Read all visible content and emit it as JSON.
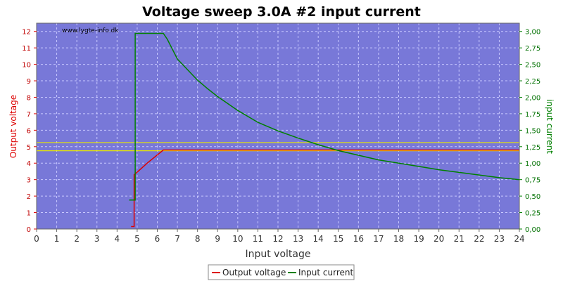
{
  "chart_data": {
    "type": "line",
    "title": "Voltage sweep 3.0A #2 input current",
    "xlabel": "Input voltage",
    "ylabel_left": "Output voltage",
    "ylabel_right": "input current",
    "watermark": "www.lygte-info.dk",
    "xlim": [
      0,
      24
    ],
    "ylim_left": [
      0,
      12.5
    ],
    "ylim_right": [
      0,
      3.125
    ],
    "x_ticks": [
      "0",
      "1",
      "2",
      "3",
      "4",
      "5",
      "6",
      "7",
      "8",
      "9",
      "10",
      "11",
      "12",
      "13",
      "14",
      "15",
      "16",
      "17",
      "18",
      "19",
      "20",
      "21",
      "22",
      "23",
      "24"
    ],
    "y_left_ticks": [
      "0",
      "1",
      "2",
      "3",
      "4",
      "5",
      "6",
      "7",
      "8",
      "9",
      "10",
      "11",
      "12"
    ],
    "y_right_ticks": [
      "0,00",
      "0,25",
      "0,50",
      "0,75",
      "1,00",
      "1,25",
      "1,50",
      "1,75",
      "2,00",
      "2,25",
      "2,50",
      "2,75",
      "3,00"
    ],
    "grid": true,
    "colors": {
      "plot_bg": "#7878d8",
      "grid": "#c8c8ff",
      "output_voltage": "#dd0000",
      "input_current": "#008000",
      "limit_lines": "#e8e800",
      "left_axis": "#dd0000",
      "right_axis": "#008000"
    },
    "reference_lines_left_axis": [
      4.75,
      5.25
    ],
    "series": [
      {
        "name": "Output voltage",
        "axis": "left",
        "x": [
          4.7,
          4.8,
          4.8,
          4.85,
          4.85,
          4.9,
          5.5,
          6.3,
          24.0
        ],
        "y": [
          0.15,
          0.15,
          0.15,
          0.15,
          3.3,
          3.35,
          4.0,
          4.8,
          4.8
        ]
      },
      {
        "name": "Input current",
        "axis": "right",
        "x": [
          4.6,
          4.8,
          4.8,
          4.9,
          4.9,
          5.0,
          6.0,
          6.3,
          6.5,
          7.0,
          7.5,
          8.0,
          8.5,
          9.0,
          10.0,
          11.0,
          12.0,
          13.0,
          14.0,
          15.0,
          16.0,
          17.0,
          18.0,
          19.0,
          20.0,
          21.0,
          22.0,
          23.0,
          24.0
        ],
        "y": [
          0.44,
          0.44,
          0.44,
          0.44,
          2.97,
          2.97,
          2.97,
          2.97,
          2.88,
          2.58,
          2.42,
          2.26,
          2.13,
          2.01,
          1.8,
          1.62,
          1.49,
          1.38,
          1.28,
          1.19,
          1.12,
          1.05,
          1.0,
          0.95,
          0.9,
          0.86,
          0.82,
          0.78,
          0.75
        ]
      }
    ],
    "legend": {
      "position": "bottom-center",
      "items": [
        "Output voltage",
        "Input current"
      ]
    }
  }
}
